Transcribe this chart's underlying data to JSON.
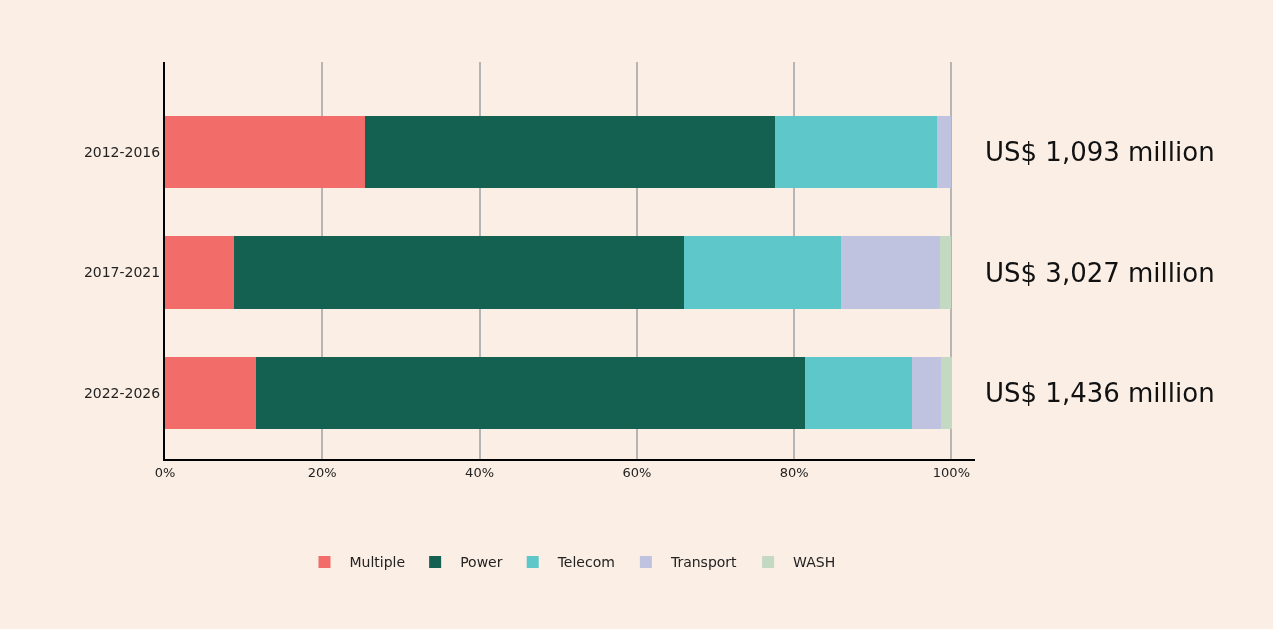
{
  "chart_data": {
    "type": "bar",
    "orientation": "horizontal",
    "stacked": true,
    "categories": [
      "2012-2016",
      "2017-2021",
      "2022-2026"
    ],
    "series": [
      {
        "name": "Multiple",
        "color": "#f26d6a",
        "values": [
          25.4,
          8.8,
          11.6
        ]
      },
      {
        "name": "Power",
        "color": "#146152",
        "values": [
          52.2,
          57.2,
          69.8
        ]
      },
      {
        "name": "Telecom",
        "color": "#5ec7c9",
        "values": [
          20.6,
          19.9,
          13.6
        ]
      },
      {
        "name": "Transport",
        "color": "#bfc3e0",
        "values": [
          1.8,
          12.7,
          3.7
        ]
      },
      {
        "name": "WASH",
        "color": "#c3d9c2",
        "values": [
          0,
          1.4,
          1.4
        ]
      }
    ],
    "totals": [
      "US$ 1,093 million",
      "US$ 3,027 million",
      "US$ 1,436 million"
    ],
    "xlim": [
      0,
      103
    ],
    "xticks": [
      {
        "value": 0,
        "label": "0%"
      },
      {
        "value": 20,
        "label": "20%"
      },
      {
        "value": 40,
        "label": "40%"
      },
      {
        "value": 60,
        "label": "60%"
      },
      {
        "value": 80,
        "label": "80%"
      },
      {
        "value": 100,
        "label": "100%"
      }
    ],
    "grid": "x",
    "legend": "bottom"
  }
}
